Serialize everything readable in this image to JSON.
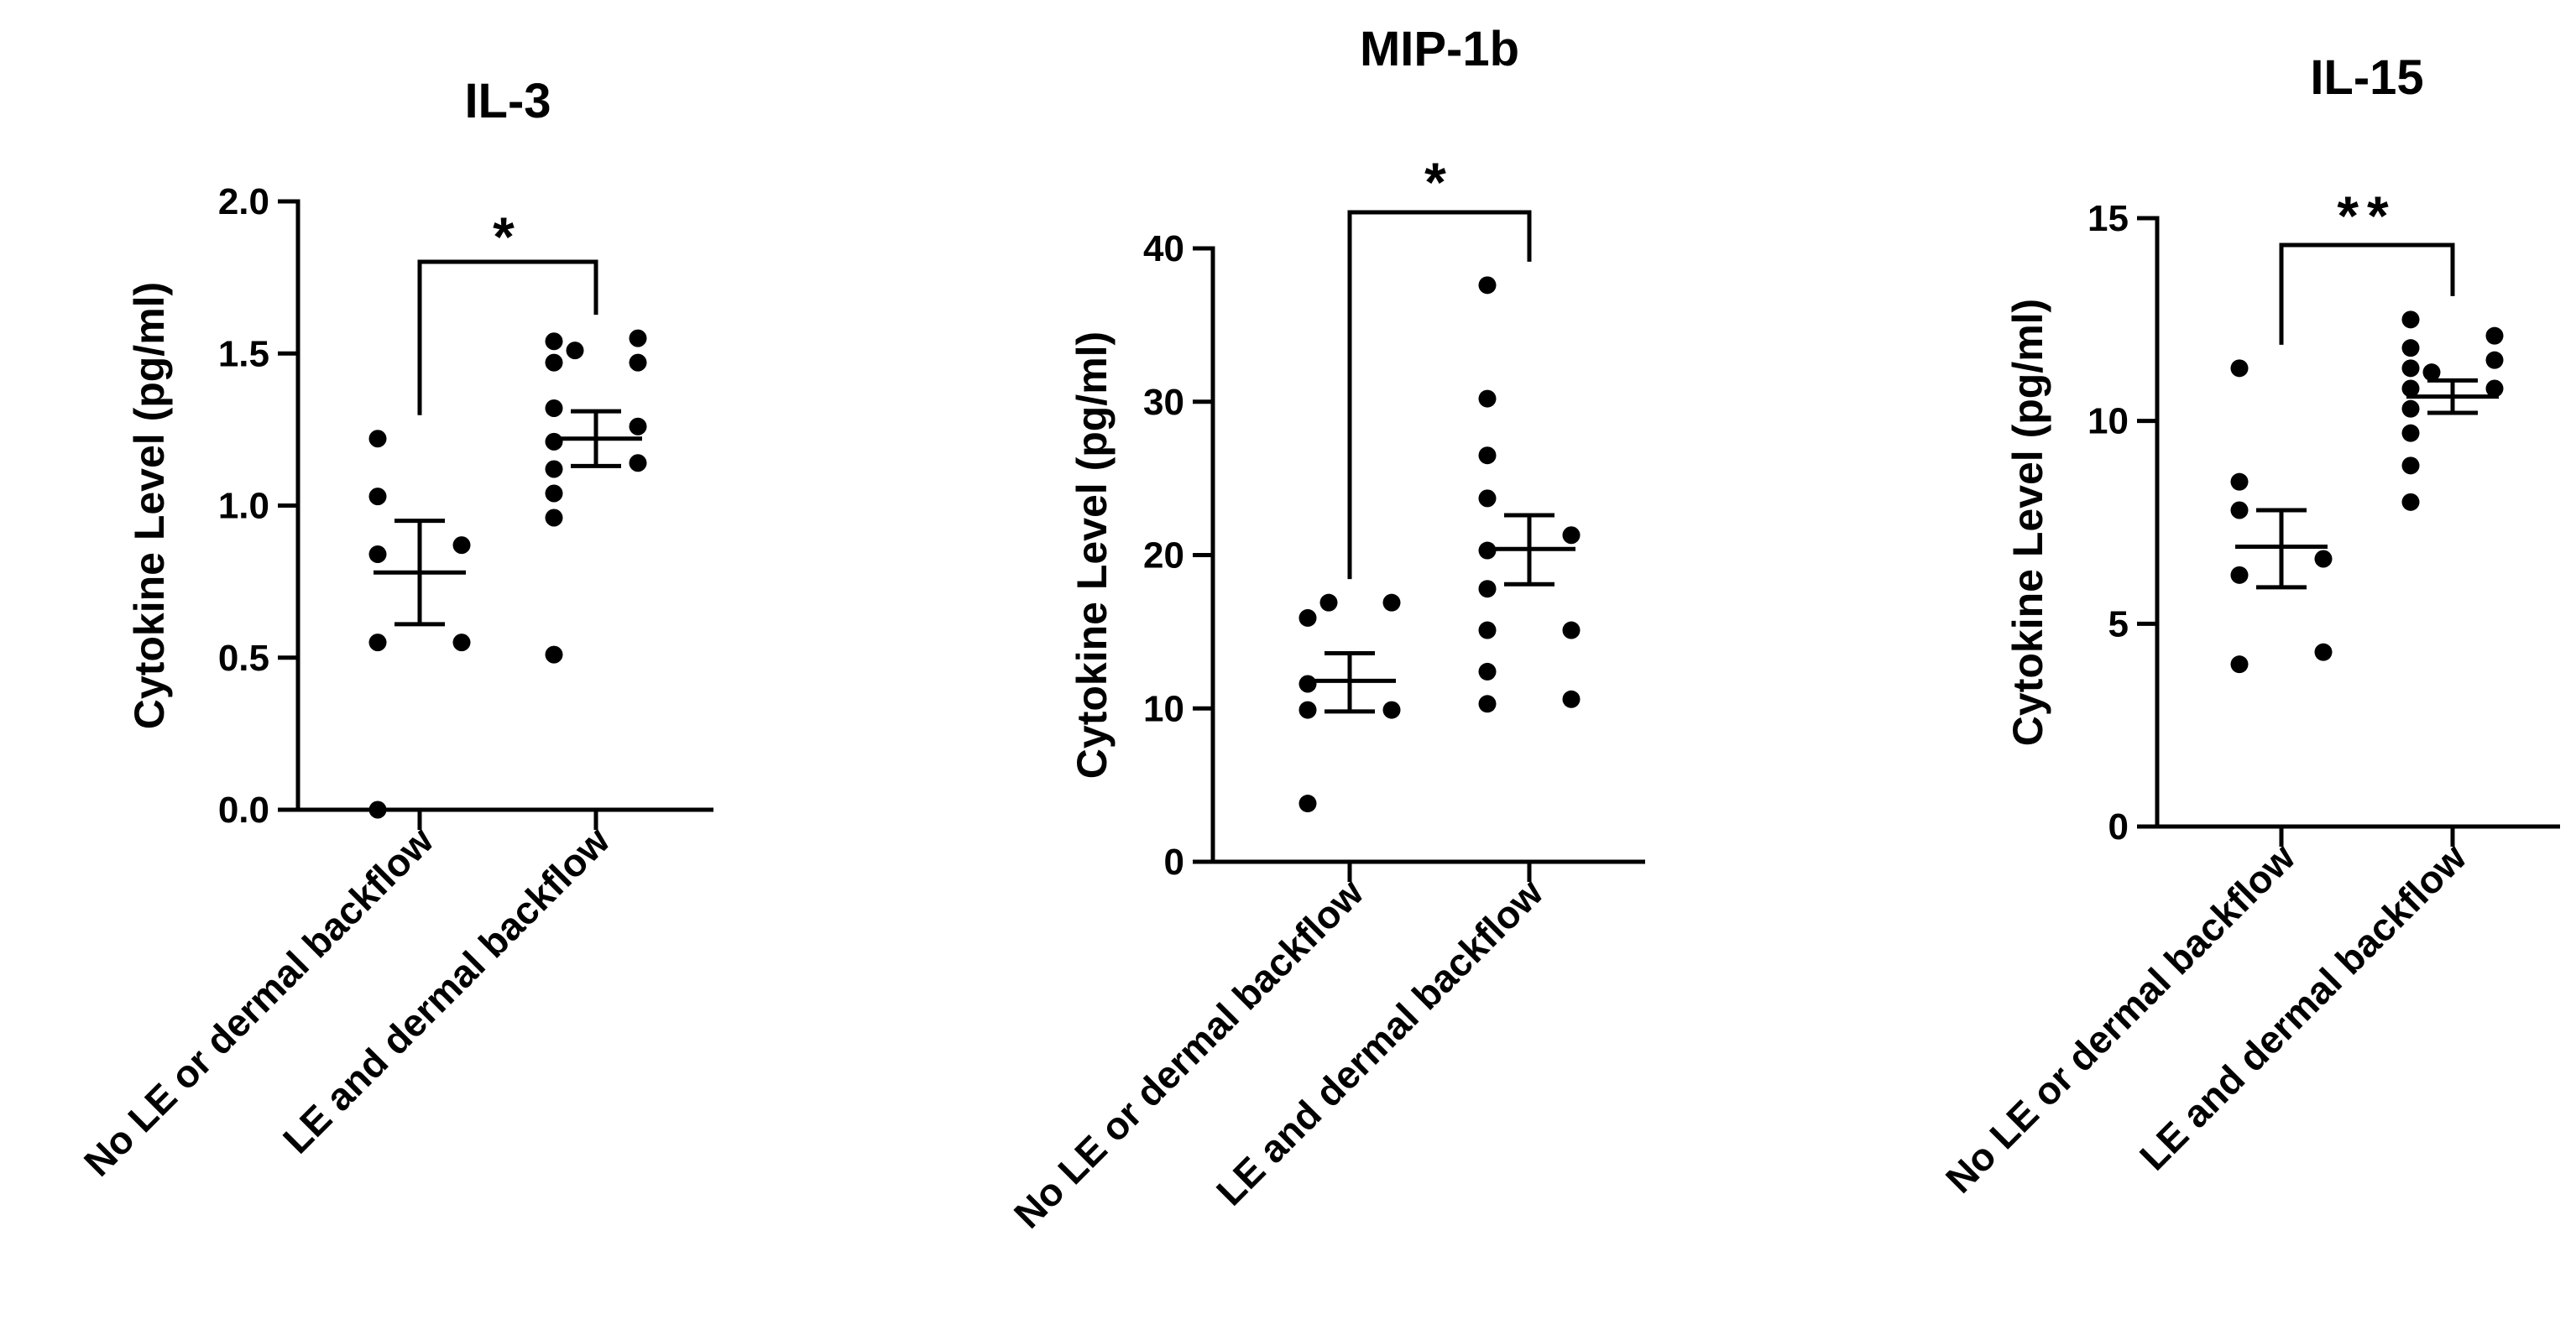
{
  "chart_data": [
    {
      "type": "scatter",
      "title": "IL-3",
      "ylabel": "Cytokine Level (pg/ml)",
      "categories": [
        "No LE or dermal backflow",
        "LE and dermal backflow"
      ],
      "ylim": [
        0,
        2.0
      ],
      "yticks": [
        0.0,
        0.5,
        1.0,
        1.5,
        2.0
      ],
      "ytick_labels": [
        "0.0",
        "0.5",
        "1.0",
        "1.5",
        "2.0"
      ],
      "groups": [
        {
          "points": [
            0.0,
            0.55,
            0.55,
            0.84,
            0.87,
            1.03,
            1.22
          ],
          "mean": 0.78,
          "sem_low": 0.61,
          "sem_high": 0.95
        },
        {
          "points": [
            0.51,
            0.96,
            1.04,
            1.12,
            1.14,
            1.21,
            1.26,
            1.32,
            1.47,
            1.47,
            1.51,
            1.54,
            1.55
          ],
          "mean": 1.22,
          "sem_low": 1.13,
          "sem_high": 1.31
        }
      ],
      "significance": "*"
    },
    {
      "type": "scatter",
      "title": "MIP-1b",
      "ylabel": "Cytokine Level (pg/ml)",
      "categories": [
        "No LE or dermal backflow",
        "LE and dermal backflow"
      ],
      "ylim": [
        0,
        40
      ],
      "yticks": [
        0,
        10,
        20,
        30,
        40
      ],
      "ytick_labels": [
        "0",
        "10",
        "20",
        "30",
        "40"
      ],
      "groups": [
        {
          "points": [
            3.8,
            9.9,
            9.9,
            11.6,
            15.9,
            16.9,
            16.9
          ],
          "mean": 11.8,
          "sem_low": 9.8,
          "sem_high": 13.6
        },
        {
          "points": [
            10.3,
            10.6,
            12.4,
            15.1,
            15.1,
            17.8,
            20.3,
            21.3,
            23.7,
            26.5,
            30.2,
            37.6
          ],
          "mean": 20.4,
          "sem_low": 18.1,
          "sem_high": 22.6
        }
      ],
      "significance": "*"
    },
    {
      "type": "scatter",
      "title": "IL-15",
      "ylabel": "Cytokine Level (pg/ml)",
      "categories": [
        "No LE or dermal backflow",
        "LE and dermal backflow"
      ],
      "ylim": [
        0,
        15
      ],
      "yticks": [
        0,
        5,
        10,
        15
      ],
      "ytick_labels": [
        "0",
        "5",
        "10",
        "15"
      ],
      "groups": [
        {
          "points": [
            4.0,
            4.3,
            6.2,
            6.6,
            7.8,
            8.5,
            11.3
          ],
          "mean": 6.9,
          "sem_low": 5.9,
          "sem_high": 7.8
        },
        {
          "points": [
            8.0,
            8.9,
            9.7,
            10.3,
            10.8,
            10.8,
            11.2,
            11.3,
            11.5,
            11.8,
            12.1,
            12.5
          ],
          "mean": 10.6,
          "sem_low": 10.2,
          "sem_high": 11.0
        }
      ],
      "significance": "**"
    }
  ]
}
